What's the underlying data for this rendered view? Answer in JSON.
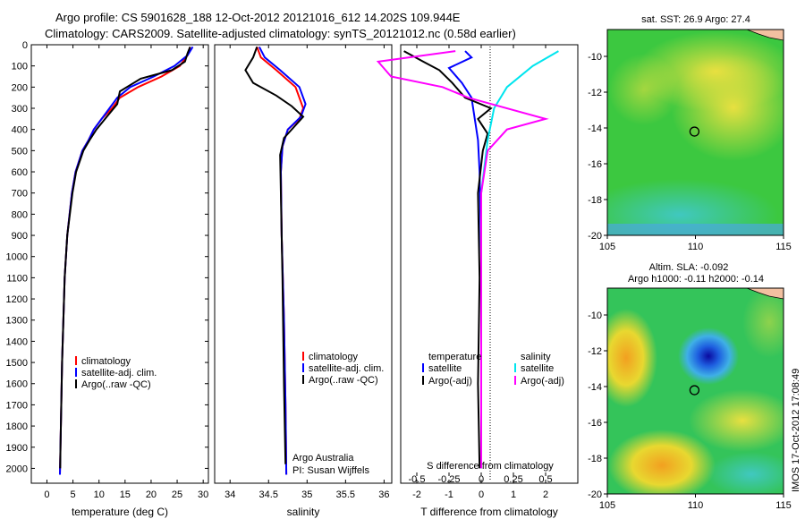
{
  "header": {
    "line1": "Argo profile: CS 5901628_188 12-Oct-2012 20121016_612 14.202S 109.944E",
    "line2": "Climatology: CARS2009. Satellite-adjusted climatology: synTS_20121012.nc (0.58d earlier)"
  },
  "colors": {
    "climatology": "#ff0000",
    "satellite": "#0000ff",
    "argo": "#000000",
    "sat_salinity": "#00e5ee",
    "argo_salinity": "#ff00ff"
  },
  "depth_axis": {
    "ticks": [
      0,
      100,
      200,
      300,
      400,
      500,
      600,
      700,
      800,
      900,
      1000,
      1100,
      1200,
      1300,
      1400,
      1500,
      1600,
      1700,
      1800,
      1900,
      2000
    ],
    "tick_labels": [
      "0",
      "100",
      "200",
      "300",
      "400",
      "500",
      "600",
      "700",
      "800",
      "900",
      "1000",
      "1100",
      "1200",
      "1300",
      "1400",
      "1500",
      "1600",
      "1700",
      "1800",
      "1900",
      "2000"
    ]
  },
  "chart_data": [
    {
      "type": "line",
      "name": "temperature-profile",
      "xlabel": "temperature (deg C)",
      "xlim": [
        -3,
        31
      ],
      "ylim": [
        0,
        2070
      ],
      "x_ticks": [
        0,
        5,
        10,
        15,
        20,
        25,
        30
      ],
      "x_tick_labels": [
        "0",
        "5",
        "10",
        "15",
        "20",
        "25",
        "30"
      ],
      "legend": [
        "climatology",
        "satellite-adj. clim.",
        "Argo(..raw -QC)"
      ],
      "series": [
        {
          "name": "climatology",
          "x": [
            27.5,
            27.0,
            25.5,
            22.0,
            17.5,
            14.0,
            12.5,
            10.5,
            9.0,
            8.0,
            6.8,
            5.5,
            4.8,
            3.9,
            3.4,
            2.9,
            2.6,
            2.5
          ],
          "depth": [
            10,
            50,
            100,
            150,
            200,
            250,
            300,
            350,
            400,
            450,
            500,
            600,
            700,
            900,
            1100,
            1500,
            1900,
            2030
          ]
        },
        {
          "name": "satellite-adj. clim.",
          "x": [
            28.0,
            27.0,
            24.5,
            20.5,
            16.0,
            13.5,
            12.0,
            10.5,
            9.0,
            8.0,
            6.8,
            5.5,
            4.8,
            3.9,
            3.4,
            2.9,
            2.6,
            2.5
          ],
          "depth": [
            10,
            50,
            100,
            150,
            200,
            250,
            300,
            350,
            400,
            450,
            500,
            600,
            700,
            900,
            1100,
            1500,
            1900,
            2030
          ]
        },
        {
          "name": "Argo",
          "x": [
            27.5,
            27.0,
            26.5,
            24.0,
            18.0,
            14.0,
            13.5,
            11.5,
            9.5,
            8.2,
            7.0,
            5.6,
            4.9,
            3.9,
            3.4,
            2.9,
            2.6,
            2.55
          ],
          "depth": [
            10,
            40,
            80,
            120,
            160,
            220,
            280,
            340,
            400,
            450,
            500,
            600,
            700,
            900,
            1100,
            1500,
            1900,
            2000
          ]
        }
      ]
    },
    {
      "type": "line",
      "name": "salinity-profile",
      "xlabel": "salinity",
      "xlim": [
        33.8,
        36.1
      ],
      "ylim": [
        0,
        2070
      ],
      "x_ticks": [
        34,
        34.5,
        35,
        35.5,
        36
      ],
      "x_tick_labels": [
        "34",
        "34.5",
        "35",
        "35.5",
        "36"
      ],
      "legend": [
        "climatology",
        "satellite-adj. clim.",
        "Argo(..raw -QC)"
      ],
      "series": [
        {
          "name": "climatology",
          "x": [
            34.35,
            34.4,
            34.6,
            34.85,
            34.95,
            34.9,
            34.75,
            34.68,
            34.66,
            34.67,
            34.7,
            34.72,
            34.73
          ],
          "depth": [
            10,
            60,
            120,
            200,
            300,
            350,
            400,
            480,
            600,
            900,
            1300,
            1700,
            2030
          ]
        },
        {
          "name": "satellite-adj. clim.",
          "x": [
            34.38,
            34.45,
            34.65,
            34.9,
            34.98,
            34.92,
            34.75,
            34.68,
            34.66,
            34.67,
            34.7,
            34.72,
            34.73
          ],
          "depth": [
            10,
            60,
            120,
            200,
            280,
            340,
            400,
            480,
            600,
            900,
            1300,
            1700,
            2030
          ]
        },
        {
          "name": "Argo",
          "x": [
            34.35,
            34.3,
            34.2,
            34.3,
            34.6,
            34.8,
            34.95,
            34.85,
            34.7,
            34.65,
            34.66,
            34.68,
            34.7,
            34.72
          ],
          "depth": [
            10,
            60,
            120,
            180,
            240,
            290,
            340,
            380,
            440,
            520,
            700,
            1100,
            1600,
            1980
          ]
        }
      ],
      "annotation": [
        "Argo Australia",
        "PI: Susan Wijffels"
      ]
    },
    {
      "type": "line",
      "name": "difference-profile",
      "xlabel": "T difference from climatology",
      "x2label": "S difference from climatology",
      "xlim": [
        -2.5,
        3.0
      ],
      "ylim": [
        0,
        2070
      ],
      "x_ticks": [
        -2,
        -1,
        0,
        1,
        2
      ],
      "x_tick_labels": [
        "-2",
        "-1",
        "0",
        "1",
        "2"
      ],
      "s_ticks": [
        -0.5,
        -0.25,
        0,
        0.25,
        0.5
      ],
      "s_tick_labels": [
        "-0.5",
        "-0.25",
        "0",
        "0.25",
        "0.5"
      ],
      "legend_temperature": [
        "temperature",
        "satellite",
        "Argo(-adj)"
      ],
      "legend_salinity": [
        "salinity",
        "satellite",
        "Argo(-adj)"
      ],
      "series": [
        {
          "name": "T satellite",
          "x": [
            -0.5,
            -0.3,
            -1.0,
            -0.6,
            -0.3,
            -0.2,
            -0.1,
            -0.05,
            0.0,
            0.0
          ],
          "depth": [
            30,
            60,
            110,
            180,
            250,
            350,
            450,
            600,
            1000,
            2000
          ]
        },
        {
          "name": "T Argo(-adj)",
          "x": [
            -2.4,
            -1.8,
            -1.3,
            -0.9,
            -0.5,
            0.3,
            -0.1,
            0.2,
            0.05,
            -0.1,
            -0.05,
            -0.1,
            -0.05
          ],
          "depth": [
            30,
            80,
            120,
            180,
            250,
            300,
            350,
            420,
            500,
            700,
            1100,
            1600,
            2000
          ]
        },
        {
          "name": "S satellite",
          "x": [
            0.6,
            0.4,
            0.2,
            0.1,
            0.05,
            0.0,
            0.0
          ],
          "depth": [
            30,
            100,
            200,
            300,
            450,
            700,
            2000
          ]
        },
        {
          "name": "S Argo(-adj)",
          "x": [
            -0.2,
            -0.8,
            -0.7,
            -0.3,
            -0.1,
            0.5,
            0.2,
            0.05,
            0.0,
            0.0
          ],
          "depth": [
            30,
            80,
            150,
            200,
            250,
            350,
            400,
            500,
            700,
            2000
          ]
        }
      ]
    },
    {
      "type": "heatmap",
      "name": "sst-map",
      "title": "sat. SST: 26.9  Argo: 27.4",
      "xlim": [
        105,
        115
      ],
      "ylim": [
        -20,
        -8.5
      ],
      "x_ticks": [
        105,
        110,
        115
      ],
      "x_tick_labels": [
        "105",
        "110",
        "115"
      ],
      "y_ticks": [
        -10,
        -12,
        -14,
        -16,
        -18,
        -20
      ],
      "y_tick_labels": [
        "-10",
        "-12",
        "-14",
        "-16",
        "-18",
        "-20"
      ],
      "marker": {
        "lon": 109.944,
        "lat": -14.202
      }
    },
    {
      "type": "heatmap",
      "name": "sla-map",
      "title": "Altim. SLA: -0.092",
      "subtitle": "Argo h1000: -0.11  h2000: -0.14",
      "xlim": [
        105,
        115
      ],
      "ylim": [
        -20,
        -8.5
      ],
      "x_ticks": [
        105,
        110,
        115
      ],
      "x_tick_labels": [
        "105",
        "110",
        "115"
      ],
      "y_ticks": [
        -10,
        -12,
        -14,
        -16,
        -18,
        -20
      ],
      "y_tick_labels": [
        "-10",
        "-12",
        "-14",
        "-16",
        "-18",
        "-20"
      ],
      "marker": {
        "lon": 109.944,
        "lat": -14.202
      }
    }
  ],
  "side_stamp": "IMOS 17-Oct-2012 17:08:49"
}
